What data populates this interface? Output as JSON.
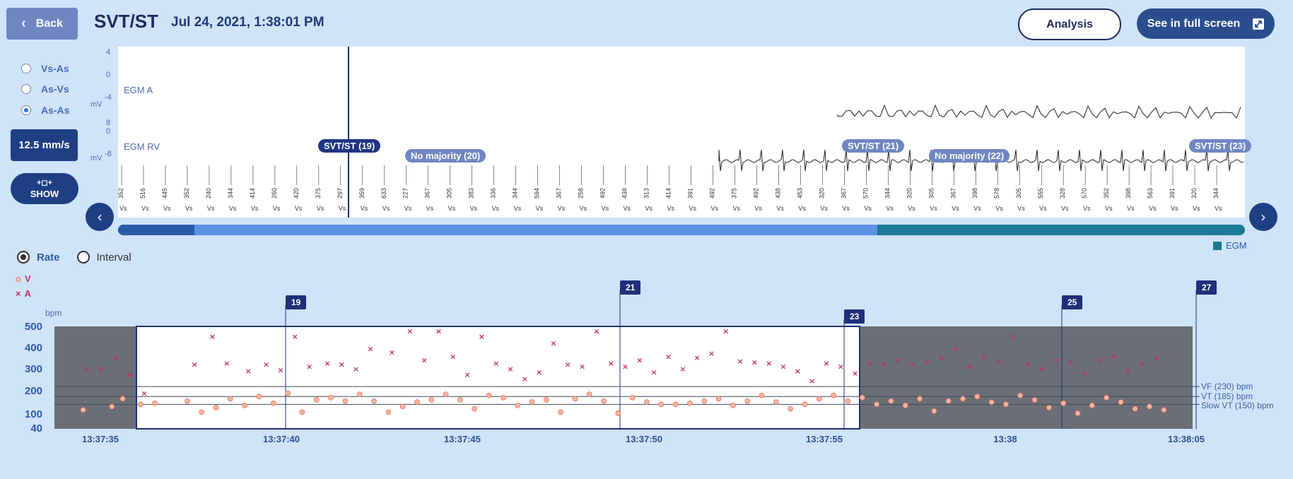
{
  "header": {
    "back_label": "Back",
    "title": "SVT/ST",
    "timestamp": "Jul 24, 2021, 1:38:01 PM",
    "analysis_label": "Analysis",
    "fullscreen_label": "See in full screen"
  },
  "sidebar": {
    "intervals": [
      {
        "label": "Vs-As",
        "selected": false
      },
      {
        "label": "As-Vs",
        "selected": false
      },
      {
        "label": "As-As",
        "selected": true
      }
    ],
    "speed_label": "12.5 mm/s",
    "show_label": "SHOW"
  },
  "egm": {
    "channels": [
      {
        "name": "EGM A",
        "ticks": [
          "4",
          "0",
          "-4"
        ],
        "unit": "mV"
      },
      {
        "name": "EGM RV",
        "ticks": [
          "8",
          "0",
          "-8"
        ],
        "unit": "mV"
      }
    ],
    "episodes": [
      {
        "label": "SVT/ST (19)",
        "style": "dark"
      },
      {
        "label": "No majority (20)",
        "style": "light"
      },
      {
        "label": "SVT/ST (21)",
        "style": "light"
      },
      {
        "label": "No majority (22)",
        "style": "light"
      },
      {
        "label": "SVT/ST (23)",
        "style": "light"
      }
    ],
    "marker_values_top": [
      "352",
      "516",
      "445",
      "352",
      "240",
      "344",
      "414",
      "260",
      "420",
      "375",
      "297",
      "359",
      "633",
      "227",
      "367",
      "305",
      "383",
      "336",
      "344",
      "594",
      "367",
      "258",
      "492",
      "438",
      "313",
      "414",
      "391",
      "492",
      "375",
      "492",
      "438",
      "453",
      "320",
      "367",
      "570",
      "344",
      "320",
      "305",
      "367",
      "398",
      "578",
      "305",
      "555",
      "328",
      "570",
      "352",
      "398",
      "563",
      "391",
      "320",
      "344"
    ],
    "legend_label": "EGM",
    "colors": {
      "episode_dark": "#1f3584",
      "episode_light": "#6f86c2",
      "egm_legend": "#1a7a96"
    }
  },
  "rate_chart": {
    "mode_options": [
      {
        "label": "Rate",
        "selected": true
      },
      {
        "label": "Interval",
        "selected": false
      }
    ],
    "legend": [
      {
        "label": "V",
        "symbol": "o",
        "color": "#f08a7a"
      },
      {
        "label": "A",
        "symbol": "x",
        "color": "#c0306a"
      }
    ],
    "ylabel": "bpm",
    "yticks": [
      "500",
      "400",
      "300",
      "200",
      "100",
      "40"
    ],
    "xticks": [
      "13:37:35",
      "13:37:40",
      "13:37:45",
      "13:37:50",
      "13:37:55",
      "13:38",
      "13:38:05"
    ],
    "episode_markers": [
      "19",
      "21",
      "23",
      "25",
      "27"
    ],
    "thresholds": [
      {
        "label": "VF (230) bpm",
        "value": 230
      },
      {
        "label": "VT (185) bpm",
        "value": 185
      },
      {
        "label": "Slow VT (150) bpm",
        "value": 150
      }
    ]
  },
  "chart_data": {
    "type": "scatter",
    "xlabel": "",
    "ylabel": "bpm",
    "ylim": [
      40,
      500
    ],
    "xlim": [
      "13:37:33.8",
      "13:38:05.5"
    ],
    "highlighted_window": [
      "13:37:36.2",
      "13:37:56"
    ],
    "series": [
      {
        "name": "V",
        "x_seconds_after_13_37_33": [
          1.6,
          2.4,
          2.7,
          3.2,
          3.6,
          4.5,
          4.9,
          5.3,
          5.7,
          6.1,
          6.5,
          6.9,
          7.3,
          7.7,
          8.1,
          8.5,
          8.9,
          9.3,
          9.7,
          10.1,
          10.5,
          10.9,
          11.3,
          11.7,
          12.1,
          12.5,
          12.9,
          13.3,
          13.7,
          14.1,
          14.5,
          14.9,
          15.3,
          15.7,
          16.1,
          16.5,
          16.9,
          17.3,
          17.7,
          18.1,
          18.5,
          18.9,
          19.3,
          19.7,
          20.1,
          20.5,
          20.9,
          21.3,
          21.7,
          22.1,
          22.5,
          22.9,
          23.3,
          23.7,
          24.1,
          24.5,
          24.9,
          25.3,
          25.7,
          26.1,
          26.5,
          26.9,
          27.3,
          27.7,
          28.1,
          28.5,
          28.9,
          29.3,
          29.7,
          30.1,
          30.5,
          30.9,
          31.3,
          31.7
        ],
        "values": [
          125,
          140,
          175,
          150,
          155,
          165,
          115,
          135,
          175,
          145,
          185,
          155,
          200,
          115,
          170,
          180,
          165,
          195,
          165,
          115,
          140,
          160,
          170,
          195,
          170,
          130,
          190,
          180,
          145,
          160,
          170,
          115,
          175,
          195,
          165,
          110,
          180,
          160,
          150,
          150,
          155,
          165,
          175,
          145,
          165,
          190,
          160,
          130,
          150,
          175,
          190,
          165,
          180,
          150,
          165,
          145,
          175,
          120,
          165,
          175,
          185,
          160,
          150,
          190,
          170,
          135,
          155,
          110,
          145,
          180,
          160,
          130,
          140,
          125
        ]
      },
      {
        "name": "A",
        "x_seconds_after_13_37_33": [
          1.7,
          2.1,
          2.5,
          2.9,
          3.3,
          4.7,
          5.2,
          5.6,
          6.2,
          6.7,
          7.1,
          7.5,
          7.9,
          8.4,
          8.8,
          9.2,
          9.6,
          10.2,
          10.7,
          11.1,
          11.5,
          11.9,
          12.3,
          12.7,
          13.1,
          13.5,
          13.9,
          14.3,
          14.7,
          15.1,
          15.5,
          15.9,
          16.3,
          16.7,
          17.1,
          17.5,
          17.9,
          18.3,
          18.7,
          19.1,
          19.5,
          19.9,
          20.3,
          20.7,
          21.1,
          21.5,
          21.9,
          22.3,
          22.7,
          23.1,
          23.5,
          23.9,
          24.3,
          24.7,
          25.1,
          25.5,
          25.9,
          26.3,
          26.7,
          27.1,
          27.5,
          27.9,
          28.3,
          28.7,
          29.1,
          29.5,
          29.9,
          30.3,
          30.7,
          31.1,
          31.5
        ],
        "values": [
          310,
          310,
          360,
          285,
          200,
          330,
          455,
          335,
          300,
          330,
          305,
          455,
          320,
          335,
          330,
          310,
          400,
          385,
          480,
          350,
          480,
          365,
          285,
          455,
          335,
          310,
          265,
          295,
          425,
          330,
          320,
          480,
          335,
          320,
          350,
          295,
          365,
          310,
          360,
          380,
          480,
          345,
          340,
          335,
          320,
          300,
          255,
          335,
          320,
          290,
          335,
          330,
          350,
          330,
          340,
          360,
          400,
          320,
          365,
          345,
          455,
          330,
          310,
          350,
          340,
          290,
          350,
          365,
          300,
          330,
          360
        ]
      }
    ]
  }
}
